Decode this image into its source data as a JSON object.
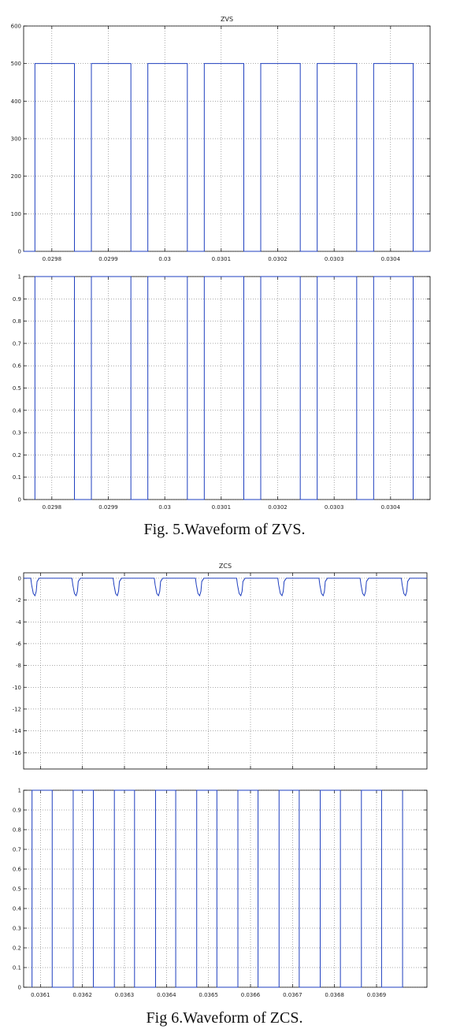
{
  "chart_data": [
    {
      "type": "line",
      "title": "ZVS",
      "caption": "Fig. 5.Waveform of ZVS.",
      "xlim": [
        0.02975,
        0.03047
      ],
      "ylim": [
        0,
        600
      ],
      "yticks": [
        0,
        100,
        200,
        300,
        400,
        500,
        600
      ],
      "xticks": [
        0.0298,
        0.0299,
        0.03,
        0.0301,
        0.0302,
        0.0303,
        0.0304
      ],
      "xticklabels": [
        "0.0298",
        "0.0299",
        "0.03",
        "0.0301",
        "0.0302",
        "0.0303",
        "0.0304"
      ],
      "grid": true,
      "series": [
        {
          "color": "#1f3fbf",
          "x": [
            0.02975,
            0.02977,
            0.02977,
            0.02984,
            0.02984,
            0.02987,
            0.02987,
            0.02994,
            0.02994,
            0.02997,
            0.02997,
            0.03004,
            0.03004,
            0.03007,
            0.03007,
            0.03014,
            0.03014,
            0.03017,
            0.03017,
            0.03024,
            0.03024,
            0.03027,
            0.03027,
            0.03034,
            0.03034,
            0.03037,
            0.03037,
            0.03044,
            0.03044,
            0.03047
          ],
          "y": [
            0,
            0,
            500,
            500,
            0,
            0,
            500,
            500,
            0,
            0,
            500,
            500,
            0,
            0,
            500,
            500,
            0,
            0,
            500,
            500,
            0,
            0,
            500,
            500,
            0,
            0,
            500,
            500,
            0,
            0
          ]
        }
      ]
    },
    {
      "type": "line",
      "title": "",
      "xlim": [
        0.02975,
        0.03047
      ],
      "ylim": [
        0,
        1
      ],
      "yticks": [
        0,
        0.1,
        0.2,
        0.3,
        0.4,
        0.5,
        0.6,
        0.7,
        0.8,
        0.9,
        1
      ],
      "yticklabels": [
        "0",
        "0.1",
        "0.2",
        "0.3",
        "0.4",
        "0.5",
        "0.6",
        "0.7",
        "0.8",
        "0.9",
        "1"
      ],
      "xticks": [
        0.0298,
        0.0299,
        0.03,
        0.0301,
        0.0302,
        0.0303,
        0.0304
      ],
      "xticklabels": [
        "0.0298",
        "0.0299",
        "0.03",
        "0.0301",
        "0.0302",
        "0.0303",
        "0.0304"
      ],
      "grid": true,
      "series": [
        {
          "color": "#1f3fbf",
          "x": [
            0.02977,
            0.02977,
            0.02984,
            0.02984,
            0.02987,
            0.02987,
            0.02994,
            0.02994,
            0.02997,
            0.02997,
            0.03004,
            0.03004,
            0.03007,
            0.03007,
            0.03014,
            0.03014,
            0.03017,
            0.03017,
            0.03024,
            0.03024,
            0.03027,
            0.03027,
            0.03034,
            0.03034,
            0.03037,
            0.03037,
            0.03044,
            0.03044
          ],
          "y": [
            0,
            1,
            1,
            0,
            0,
            1,
            1,
            0,
            0,
            1,
            1,
            0,
            0,
            1,
            1,
            0,
            0,
            1,
            1,
            0,
            0,
            1,
            1,
            0,
            0,
            1,
            1,
            0
          ]
        }
      ]
    },
    {
      "type": "line",
      "title": "ZCS",
      "xlim": [
        0.03606,
        0.03702
      ],
      "ylim": [
        -17.5,
        0.5
      ],
      "yticks": [
        0,
        -2,
        -4,
        -6,
        -8,
        -10,
        -12,
        -14,
        -16
      ],
      "xticks": [
        0.0361,
        0.0362,
        0.0363,
        0.0364,
        0.0365,
        0.0366,
        0.0367,
        0.0368,
        0.0369
      ],
      "grid": true,
      "series": [
        {
          "color": "#1f3fbf",
          "x": [
            0.03606,
            0.036077,
            0.036079,
            0.036083,
            0.036087,
            0.03609,
            0.036092,
            0.036097,
            0.036175,
            0.036177,
            0.036181,
            0.036185,
            0.036188,
            0.03619,
            0.036195,
            0.036273,
            0.036275,
            0.036279,
            0.036283,
            0.036286,
            0.036288,
            0.036293,
            0.036371,
            0.036373,
            0.036377,
            0.036381,
            0.036384,
            0.036386,
            0.036391,
            0.036469,
            0.036471,
            0.036475,
            0.036479,
            0.036482,
            0.036484,
            0.036489,
            0.036567,
            0.036569,
            0.036573,
            0.036577,
            0.03658,
            0.036582,
            0.036587,
            0.036665,
            0.036667,
            0.036671,
            0.036675,
            0.036678,
            0.03668,
            0.036685,
            0.036763,
            0.036765,
            0.036769,
            0.036773,
            0.036776,
            0.036778,
            0.036783,
            0.036861,
            0.036863,
            0.036867,
            0.036871,
            0.036874,
            0.036876,
            0.036881,
            0.036959,
            0.036961,
            0.036965,
            0.036969,
            0.036972,
            0.036974,
            0.036979,
            0.03702
          ],
          "y": [
            0,
            0,
            -0.6,
            -1.4,
            -1.6,
            -1.2,
            -0.3,
            0,
            0,
            -0.6,
            -1.4,
            -1.6,
            -1.2,
            -0.3,
            0,
            0,
            -0.6,
            -1.4,
            -1.6,
            -1.2,
            -0.3,
            0,
            0,
            -0.6,
            -1.4,
            -1.6,
            -1.2,
            -0.3,
            0,
            0,
            -0.6,
            -1.4,
            -1.6,
            -1.2,
            -0.3,
            0,
            0,
            -0.6,
            -1.4,
            -1.6,
            -1.2,
            -0.3,
            0,
            0,
            -0.6,
            -1.4,
            -1.6,
            -1.2,
            -0.3,
            0,
            0,
            -0.6,
            -1.4,
            -1.6,
            -1.2,
            -0.3,
            0,
            0,
            -0.6,
            -1.4,
            -1.6,
            -1.2,
            -0.3,
            0,
            0,
            -0.6,
            -1.4,
            -1.6,
            -1.2,
            -0.3,
            0,
            0
          ]
        }
      ]
    },
    {
      "type": "line",
      "title": "",
      "caption": "Fig 6.Waveform of ZCS.",
      "xlim": [
        0.03606,
        0.03702
      ],
      "ylim": [
        0,
        1
      ],
      "yticks": [
        0,
        0.1,
        0.2,
        0.3,
        0.4,
        0.5,
        0.6,
        0.7,
        0.8,
        0.9,
        1
      ],
      "yticklabels": [
        "0",
        "0.1",
        "0.2",
        "0.3",
        "0.4",
        "0.5",
        "0.6",
        "0.7",
        "0.8",
        "0.9",
        "1"
      ],
      "xticks": [
        0.0361,
        0.0362,
        0.0363,
        0.0364,
        0.0365,
        0.0366,
        0.0367,
        0.0368,
        0.0369
      ],
      "xticklabels": [
        "0.0361",
        "0.0362",
        "0.0363",
        "0.0364",
        "0.0365",
        "0.0366",
        "0.0367",
        "0.0368",
        "0.0369"
      ],
      "grid": true,
      "series": [
        {
          "color": "#1f3fbf",
          "x": [
            0.03608,
            0.03608,
            0.036128,
            0.036128,
            0.036178,
            0.036178,
            0.036226,
            0.036226,
            0.036276,
            0.036276,
            0.036324,
            0.036324,
            0.036374,
            0.036374,
            0.036422,
            0.036422,
            0.036472,
            0.036472,
            0.03652,
            0.03652,
            0.03657,
            0.03657,
            0.036618,
            0.036618,
            0.036668,
            0.036668,
            0.036716,
            0.036716,
            0.036766,
            0.036766,
            0.036814,
            0.036814,
            0.036864,
            0.036864,
            0.036912,
            0.036912,
            0.036962,
            0.036962
          ],
          "y": [
            0,
            1,
            1,
            0,
            0,
            1,
            1,
            0,
            0,
            1,
            1,
            0,
            0,
            1,
            1,
            0,
            0,
            1,
            1,
            0,
            0,
            1,
            1,
            0,
            0,
            1,
            1,
            0,
            0,
            1,
            1,
            0,
            0,
            1,
            1,
            0,
            0,
            1
          ]
        }
      ]
    }
  ]
}
